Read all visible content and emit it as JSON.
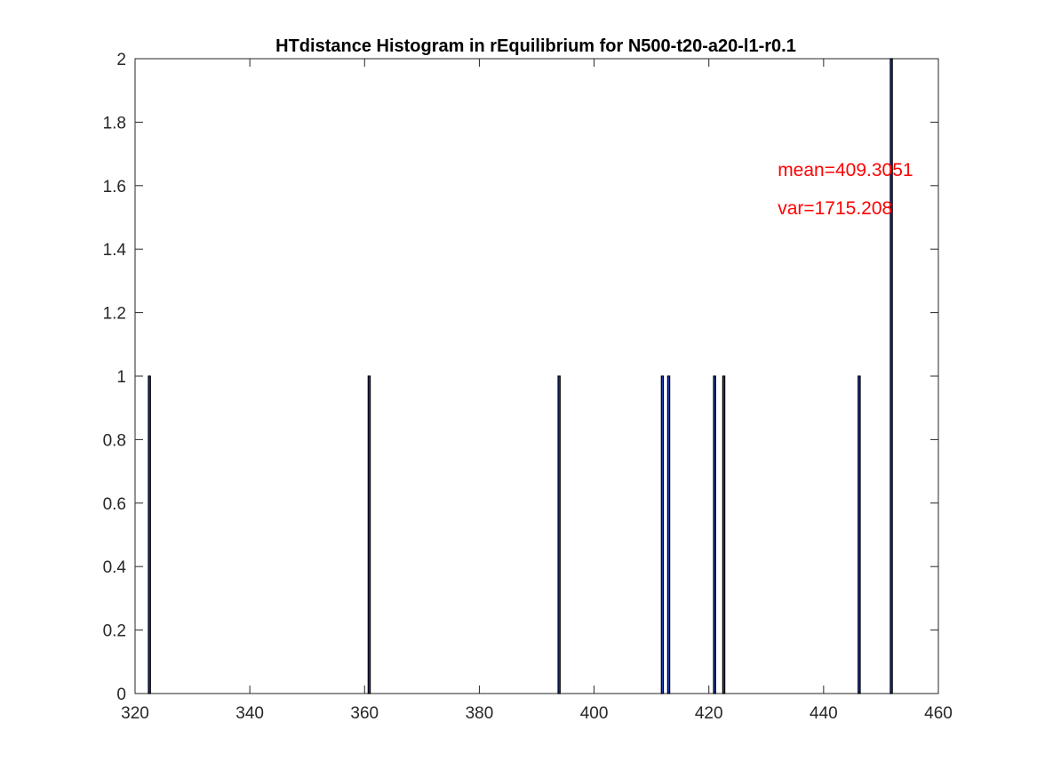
{
  "chart_data": {
    "type": "bar",
    "title": "HTdistance Histogram in rEquilibrium for N500-t20-a20-l1-r0.1",
    "xlabel": "",
    "ylabel": "",
    "xlim": [
      320,
      460
    ],
    "ylim": [
      0,
      2
    ],
    "xticks": [
      320,
      340,
      360,
      380,
      400,
      420,
      440,
      460
    ],
    "xtick_labels": [
      "320",
      "340",
      "360",
      "380",
      "400",
      "420",
      "440",
      "460"
    ],
    "yticks": [
      0,
      0.2,
      0.4,
      0.6,
      0.8,
      1,
      1.2,
      1.4,
      1.6,
      1.8,
      2
    ],
    "ytick_labels": [
      "0",
      "0.2",
      "0.4",
      "0.6",
      "0.8",
      "1",
      "1.2",
      "1.4",
      "1.6",
      "1.8",
      "2"
    ],
    "grid": false,
    "bars": [
      {
        "x": 322.5,
        "count": 1
      },
      {
        "x": 360.8,
        "count": 1
      },
      {
        "x": 393.9,
        "count": 1
      },
      {
        "x": 411.9,
        "count": 1
      },
      {
        "x": 413.0,
        "count": 1
      },
      {
        "x": 421.0,
        "count": 1
      },
      {
        "x": 422.6,
        "count": 1
      },
      {
        "x": 446.2,
        "count": 1
      },
      {
        "x": 451.8,
        "count": 2
      }
    ],
    "bar_width": 0.35,
    "annotations": [
      {
        "text": "mean=409.3051",
        "x": 432,
        "y": 1.65
      },
      {
        "text": "var=1715.208",
        "x": 432,
        "y": 1.53
      }
    ],
    "colors": {
      "bar_edge": "#000000",
      "bar_fill": "#1f3fbf",
      "annotation": "#ff0000",
      "axis": "#262626"
    }
  }
}
